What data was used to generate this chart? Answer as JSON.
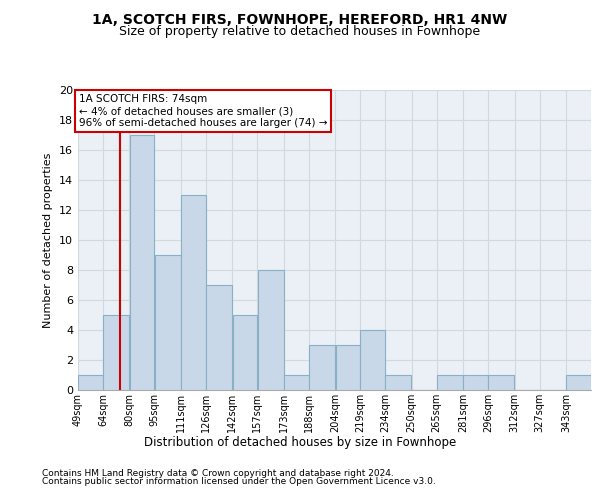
{
  "title": "1A, SCOTCH FIRS, FOWNHOPE, HEREFORD, HR1 4NW",
  "subtitle": "Size of property relative to detached houses in Fownhope",
  "xlabel": "Distribution of detached houses by size in Fownhope",
  "ylabel": "Number of detached properties",
  "bar_color": "#c8d8e8",
  "bar_edge_color": "#8ab0c8",
  "grid_color": "#d0d8e0",
  "bg_color": "#eaf0f6",
  "red_line_x": 74,
  "annotation_text": "1A SCOTCH FIRS: 74sqm\n← 4% of detached houses are smaller (3)\n96% of semi-detached houses are larger (74) →",
  "annotation_box_color": "#cc0000",
  "bins": [
    49,
    64,
    80,
    95,
    111,
    126,
    142,
    157,
    173,
    188,
    204,
    219,
    234,
    250,
    265,
    281,
    296,
    312,
    327,
    343,
    358
  ],
  "values": [
    1,
    5,
    17,
    9,
    13,
    7,
    5,
    8,
    1,
    3,
    3,
    4,
    1,
    0,
    1,
    1,
    1,
    0,
    0,
    1
  ],
  "ylim": [
    0,
    20
  ],
  "yticks": [
    0,
    2,
    4,
    6,
    8,
    10,
    12,
    14,
    16,
    18,
    20
  ],
  "footer_line1": "Contains HM Land Registry data © Crown copyright and database right 2024.",
  "footer_line2": "Contains public sector information licensed under the Open Government Licence v3.0."
}
